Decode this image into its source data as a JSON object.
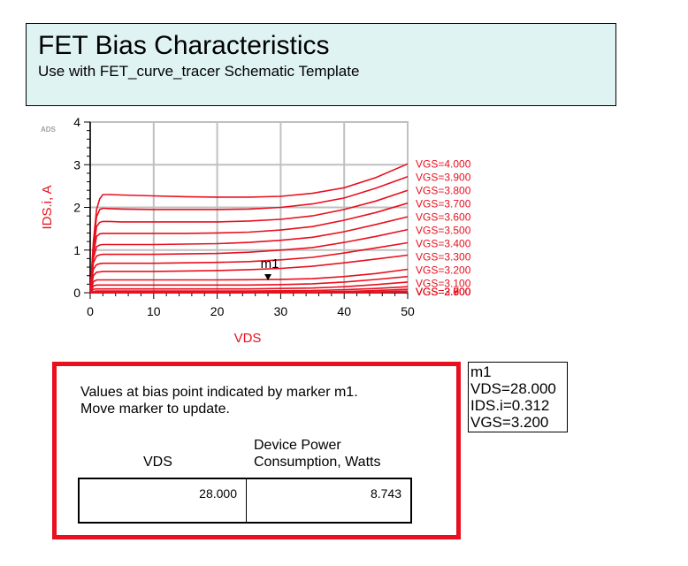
{
  "header": {
    "title": "FET Bias Characteristics",
    "subtitle": "Use with FET_curve_tracer Schematic Template"
  },
  "plot": {
    "watermark": "ADS",
    "marker_label": "m1"
  },
  "marker_readout": {
    "name": "m1",
    "vds": "VDS=28.000",
    "ids": "IDS.i=0.312",
    "vgs": "VGS=3.200"
  },
  "bias_panel": {
    "description_line1": "Values at bias point indicated by marker m1.",
    "description_line2": "Move marker to update.",
    "col_vds_header": "VDS",
    "col_power_header_line1": "Device Power",
    "col_power_header_line2": "Consumption, Watts",
    "vds_value": "28.000",
    "power_value": "8.743"
  },
  "colors": {
    "curve": "#e8101e",
    "axis_label": "#e8101e",
    "grid": "#c0c0c0",
    "panel_border": "#e8101e",
    "title_bg": "#dff3f3"
  },
  "chart_data": {
    "type": "line",
    "xlabel": "VDS",
    "ylabel": "IDS.i, A",
    "xlim": [
      0,
      50
    ],
    "ylim": [
      0,
      4
    ],
    "x_ticks": [
      "0",
      "10",
      "20",
      "30",
      "40",
      "50"
    ],
    "y_ticks": [
      "0",
      "1",
      "2",
      "3",
      "4"
    ],
    "grid": true,
    "legend": "right, labels at curve ends",
    "x": [
      0,
      0.5,
      1,
      1.5,
      2,
      3,
      5,
      10,
      15,
      20,
      25,
      30,
      35,
      40,
      45,
      50
    ],
    "series": [
      {
        "name": "VGS=4.000",
        "values": [
          0,
          1.2,
          1.95,
          2.2,
          2.3,
          2.3,
          2.29,
          2.27,
          2.25,
          2.24,
          2.24,
          2.26,
          2.33,
          2.46,
          2.7,
          3.02
        ]
      },
      {
        "name": "VGS=3.900",
        "values": [
          0,
          1.1,
          1.78,
          1.95,
          1.98,
          1.97,
          1.96,
          1.95,
          1.95,
          1.95,
          1.96,
          2.0,
          2.08,
          2.22,
          2.45,
          2.72
        ]
      },
      {
        "name": "VGS=3.800",
        "values": [
          0,
          1.0,
          1.55,
          1.65,
          1.67,
          1.67,
          1.66,
          1.66,
          1.66,
          1.66,
          1.68,
          1.72,
          1.8,
          1.95,
          2.15,
          2.4
        ]
      },
      {
        "name": "VGS=3.700",
        "values": [
          0,
          0.9,
          1.32,
          1.38,
          1.39,
          1.39,
          1.39,
          1.39,
          1.39,
          1.4,
          1.42,
          1.47,
          1.55,
          1.7,
          1.88,
          2.1
        ]
      },
      {
        "name": "VGS=3.600",
        "values": [
          0,
          0.8,
          1.08,
          1.12,
          1.13,
          1.13,
          1.13,
          1.13,
          1.14,
          1.15,
          1.18,
          1.23,
          1.3,
          1.43,
          1.6,
          1.78
        ]
      },
      {
        "name": "VGS=3.500",
        "values": [
          0,
          0.7,
          0.86,
          0.89,
          0.9,
          0.9,
          0.9,
          0.9,
          0.91,
          0.92,
          0.95,
          1.0,
          1.06,
          1.18,
          1.32,
          1.48
        ]
      },
      {
        "name": "VGS=3.400",
        "values": [
          0,
          0.55,
          0.66,
          0.68,
          0.69,
          0.69,
          0.69,
          0.69,
          0.7,
          0.71,
          0.73,
          0.77,
          0.83,
          0.93,
          1.05,
          1.17
        ]
      },
      {
        "name": "VGS=3.300",
        "values": [
          0,
          0.4,
          0.48,
          0.49,
          0.5,
          0.5,
          0.5,
          0.5,
          0.51,
          0.52,
          0.54,
          0.57,
          0.62,
          0.7,
          0.79,
          0.88
        ]
      },
      {
        "name": "VGS=3.200",
        "values": [
          0,
          0.26,
          0.3,
          0.3,
          0.3,
          0.3,
          0.3,
          0.3,
          0.3,
          0.3,
          0.305,
          0.312,
          0.33,
          0.38,
          0.45,
          0.55
        ]
      },
      {
        "name": "VGS=3.100",
        "values": [
          0,
          0.16,
          0.18,
          0.18,
          0.18,
          0.18,
          0.18,
          0.18,
          0.18,
          0.18,
          0.18,
          0.19,
          0.21,
          0.25,
          0.31,
          0.38
        ]
      },
      {
        "name": "VGS=3.000",
        "values": [
          0,
          0.08,
          0.09,
          0.09,
          0.09,
          0.09,
          0.09,
          0.09,
          0.09,
          0.09,
          0.09,
          0.1,
          0.11,
          0.14,
          0.19,
          0.25
        ]
      },
      {
        "name": "VGS=2.900",
        "values": [
          0,
          0.03,
          0.04,
          0.04,
          0.04,
          0.04,
          0.04,
          0.04,
          0.04,
          0.04,
          0.04,
          0.045,
          0.05,
          0.07,
          0.1,
          0.14
        ]
      },
      {
        "name": "VGS=2.800",
        "values": [
          0,
          0.01,
          0.015,
          0.015,
          0.015,
          0.015,
          0.015,
          0.015,
          0.015,
          0.015,
          0.015,
          0.018,
          0.02,
          0.03,
          0.05,
          0.08
        ]
      },
      {
        "name": "VGS=2.700",
        "values": [
          0,
          0.005,
          0.005,
          0.005,
          0.005,
          0.005,
          0.005,
          0.005,
          0.005,
          0.005,
          0.005,
          0.006,
          0.008,
          0.012,
          0.02,
          0.04
        ]
      },
      {
        "name": "VGS=2.600",
        "values": [
          0,
          0.001,
          0.001,
          0.001,
          0.001,
          0.001,
          0.001,
          0.001,
          0.001,
          0.001,
          0.001,
          0.002,
          0.003,
          0.005,
          0.008,
          0.015
        ]
      }
    ],
    "marker": {
      "name": "m1",
      "x": 28.0,
      "y": 0.312
    }
  }
}
